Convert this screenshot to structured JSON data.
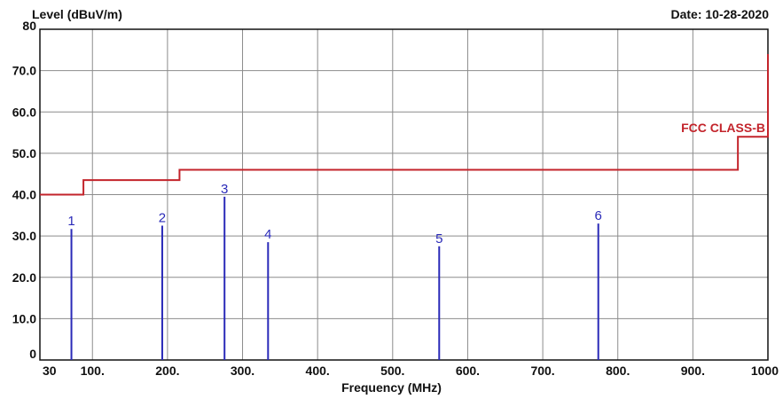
{
  "header": {
    "y_axis_label": "Level (dBuV/m)",
    "date_prefix": "Date:",
    "date_value": "10-28-2020",
    "x_axis_label": "Frequency (MHz)"
  },
  "colors": {
    "limit_line": "#c3242b",
    "markers": "#2a2ab8",
    "grid": "#8c8c8c",
    "axes": "#111111"
  },
  "chart_data": {
    "type": "line",
    "title": "",
    "xlabel": "Frequency (MHz)",
    "ylabel": "Level (dBuV/m)",
    "xlim": [
      30,
      1000
    ],
    "ylim": [
      0,
      80
    ],
    "grid": true,
    "x_ticks": [
      {
        "value": 30,
        "label": "30"
      },
      {
        "value": 100,
        "label": "100."
      },
      {
        "value": 200,
        "label": "200."
      },
      {
        "value": 300,
        "label": "300."
      },
      {
        "value": 400,
        "label": "400."
      },
      {
        "value": 500,
        "label": "500."
      },
      {
        "value": 600,
        "label": "600."
      },
      {
        "value": 700,
        "label": "700."
      },
      {
        "value": 800,
        "label": "800."
      },
      {
        "value": 900,
        "label": "900."
      },
      {
        "value": 1000,
        "label": "1000"
      }
    ],
    "y_ticks": [
      {
        "value": 0,
        "label": "0"
      },
      {
        "value": 10,
        "label": "10.0"
      },
      {
        "value": 20,
        "label": "20.0"
      },
      {
        "value": 30,
        "label": "30.0"
      },
      {
        "value": 40,
        "label": "40.0"
      },
      {
        "value": 50,
        "label": "50.0"
      },
      {
        "value": 60,
        "label": "60.0"
      },
      {
        "value": 70,
        "label": "70.0"
      },
      {
        "value": 80,
        "label": "80"
      }
    ],
    "limit_line": {
      "name": "FCC CLASS-B",
      "points": [
        [
          30,
          40
        ],
        [
          88,
          40
        ],
        [
          88,
          43.5
        ],
        [
          216,
          43.5
        ],
        [
          216,
          46
        ],
        [
          960,
          46
        ],
        [
          960,
          54
        ],
        [
          1000,
          54
        ],
        [
          1000,
          74
        ]
      ]
    },
    "markers": [
      {
        "label": "1",
        "freq": 72,
        "level": 31.7
      },
      {
        "label": "2",
        "freq": 193,
        "level": 32.5
      },
      {
        "label": "3",
        "freq": 276,
        "level": 39.5
      },
      {
        "label": "4",
        "freq": 334,
        "level": 28.5
      },
      {
        "label": "5",
        "freq": 562,
        "level": 27.5
      },
      {
        "label": "6",
        "freq": 774,
        "level": 33.0
      }
    ]
  }
}
